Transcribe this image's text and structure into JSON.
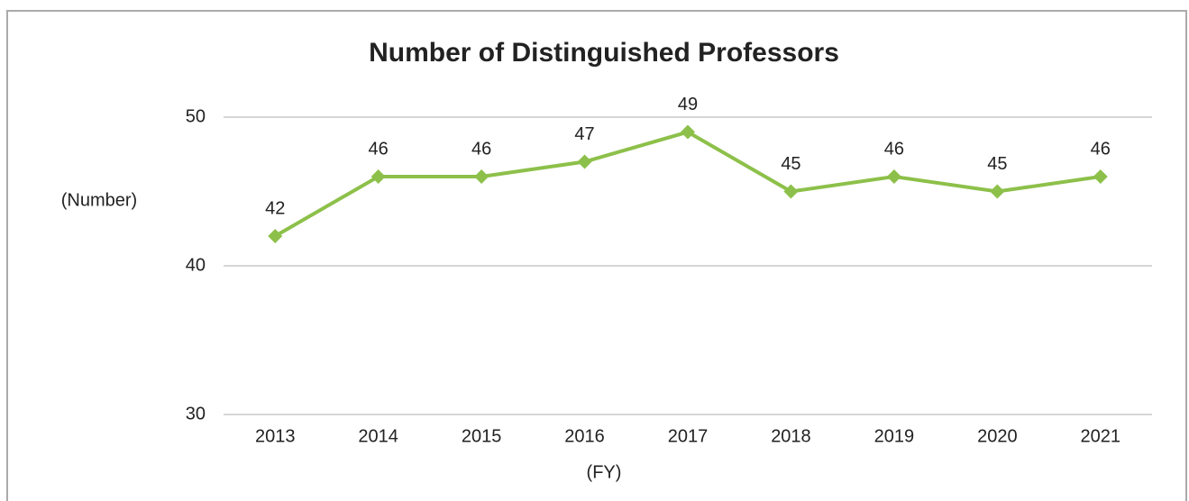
{
  "chart_data": {
    "type": "line",
    "title": "Number of Distinguished Professors",
    "y_label": "(Number)",
    "x_label": "(FY)",
    "categories": [
      "2013",
      "2014",
      "2015",
      "2016",
      "2017",
      "2018",
      "2019",
      "2020",
      "2021"
    ],
    "series": [
      {
        "name": "Distinguished Professors",
        "color": "#8dc04a",
        "values": [
          42,
          46,
          46,
          47,
          49,
          45,
          46,
          45,
          46
        ]
      }
    ],
    "ylim": [
      30,
      50
    ],
    "yticks": [
      30,
      40,
      50
    ],
    "grid": true
  }
}
